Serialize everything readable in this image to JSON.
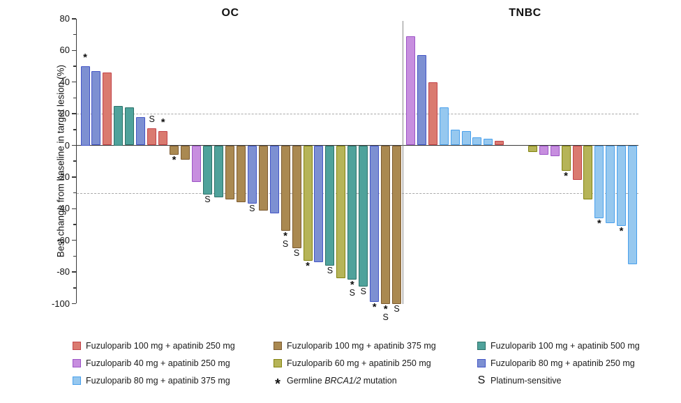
{
  "chart_data": {
    "type": "bar",
    "variant": "waterfall",
    "title": "",
    "ylabel": "Best change from baseline in target lesion (%)",
    "ylim": [
      -100,
      80
    ],
    "yticks": [
      80,
      60,
      40,
      20,
      0,
      -20,
      -40,
      -60,
      -80,
      -100
    ],
    "minor_yticks": [
      70,
      50,
      30,
      10,
      -10,
      -30,
      -50,
      -70,
      -90
    ],
    "reference_lines": [
      20,
      -30
    ],
    "grid": false,
    "marker_meaning": {
      "*": "Germline BRCA1/2 mutation",
      "S": "Platinum-sensitive"
    },
    "groups": {
      "f100a250": {
        "label": "Fuzuloparib 100 mg + apatinib 250 mg",
        "fill": "#DA7A70",
        "border": "#C2444A"
      },
      "f100a375": {
        "label": "Fuzuloparib 100 mg + apatinib 375 mg",
        "fill": "#AA8951",
        "border": "#7C5A30"
      },
      "f100a500": {
        "label": "Fuzuloparib 100 mg + apatinib 500 mg",
        "fill": "#4FA29B",
        "border": "#2B7168"
      },
      "f40a250": {
        "label": "Fuzuloparib 40 mg + apatinib 250 mg",
        "fill": "#C78EDF",
        "border": "#9C54C6"
      },
      "f60a250": {
        "label": "Fuzuloparib 60 mg + apatinib 250 mg",
        "fill": "#B6B458",
        "border": "#83830F"
      },
      "f80a250": {
        "label": "Fuzuloparib 80 mg + apatinib 250 mg",
        "fill": "#7D90D2",
        "border": "#4355C6"
      },
      "f80a375": {
        "label": "Fuzuloparib 80 mg + apatinib 375 mg",
        "fill": "#96C8EF",
        "border": "#49A0EC"
      }
    },
    "panels": [
      {
        "title": "OC",
        "bars": [
          {
            "group": "f80a250",
            "value": 50,
            "marks": "*"
          },
          {
            "group": "f80a250",
            "value": 47,
            "marks": ""
          },
          {
            "group": "f100a250",
            "value": 46,
            "marks": ""
          },
          {
            "group": "f100a500",
            "value": 25,
            "marks": ""
          },
          {
            "group": "f100a500",
            "value": 24,
            "marks": ""
          },
          {
            "group": "f80a250",
            "value": 18,
            "marks": ""
          },
          {
            "group": "f100a250",
            "value": 11,
            "marks": "S"
          },
          {
            "group": "f100a250",
            "value": 9,
            "marks": "*"
          },
          {
            "group": "f100a375",
            "value": -6,
            "marks": "*"
          },
          {
            "group": "f100a375",
            "value": -9,
            "marks": ""
          },
          {
            "group": "f40a250",
            "value": -23,
            "marks": ""
          },
          {
            "group": "f100a500",
            "value": -31,
            "marks": "S"
          },
          {
            "group": "f100a500",
            "value": -33,
            "marks": ""
          },
          {
            "group": "f100a375",
            "value": -34,
            "marks": ""
          },
          {
            "group": "f100a375",
            "value": -36,
            "marks": ""
          },
          {
            "group": "f80a250",
            "value": -37,
            "marks": "S"
          },
          {
            "group": "f100a375",
            "value": -41,
            "marks": ""
          },
          {
            "group": "f80a250",
            "value": -43,
            "marks": ""
          },
          {
            "group": "f100a375",
            "value": -54,
            "marks": "*S"
          },
          {
            "group": "f100a375",
            "value": -65,
            "marks": "S"
          },
          {
            "group": "f60a250",
            "value": -73,
            "marks": "*"
          },
          {
            "group": "f80a250",
            "value": -74,
            "marks": ""
          },
          {
            "group": "f100a500",
            "value": -76,
            "marks": "S"
          },
          {
            "group": "f60a250",
            "value": -84,
            "marks": ""
          },
          {
            "group": "f100a500",
            "value": -85,
            "marks": "*S"
          },
          {
            "group": "f100a500",
            "value": -89,
            "marks": "S"
          },
          {
            "group": "f80a250",
            "value": -99,
            "marks": "*"
          },
          {
            "group": "f100a375",
            "value": -100,
            "marks": "*S"
          },
          {
            "group": "f100a375",
            "value": -100,
            "marks": "S"
          }
        ]
      },
      {
        "title": "TNBC",
        "bars": [
          {
            "group": "f40a250",
            "value": 69,
            "marks": ""
          },
          {
            "group": "f80a250",
            "value": 57,
            "marks": ""
          },
          {
            "group": "f100a250",
            "value": 40,
            "marks": ""
          },
          {
            "group": "f80a375",
            "value": 24,
            "marks": ""
          },
          {
            "group": "f80a375",
            "value": 10,
            "marks": ""
          },
          {
            "group": "f80a375",
            "value": 9,
            "marks": ""
          },
          {
            "group": "f80a375",
            "value": 5,
            "marks": ""
          },
          {
            "group": "f80a375",
            "value": 4,
            "marks": ""
          },
          {
            "group": "f100a250",
            "value": 3,
            "marks": ""
          },
          null,
          null,
          {
            "group": "f60a250",
            "value": -4,
            "marks": ""
          },
          {
            "group": "f40a250",
            "value": -6,
            "marks": ""
          },
          {
            "group": "f40a250",
            "value": -7,
            "marks": ""
          },
          {
            "group": "f60a250",
            "value": -16,
            "marks": "*"
          },
          {
            "group": "f100a250",
            "value": -22,
            "marks": ""
          },
          {
            "group": "f60a250",
            "value": -34,
            "marks": ""
          },
          {
            "group": "f80a375",
            "value": -46,
            "marks": "*"
          },
          {
            "group": "f80a375",
            "value": -49,
            "marks": ""
          },
          {
            "group": "f80a375",
            "value": -51,
            "marks": "*"
          },
          {
            "group": "f80a375",
            "value": -75,
            "marks": ""
          }
        ]
      }
    ]
  },
  "legend": {
    "rows": [
      [
        {
          "swatch": "f100a250"
        },
        {
          "swatch": "f100a375"
        },
        {
          "swatch": "f100a500"
        }
      ],
      [
        {
          "swatch": "f40a250"
        },
        {
          "swatch": "f60a250"
        },
        {
          "swatch": "f80a250"
        }
      ],
      [
        {
          "swatch": "f80a375"
        },
        {
          "symbol": "*",
          "parts": [
            {
              "t": "Germline "
            },
            {
              "t": "BRCA1/2",
              "italic": true
            },
            {
              "t": " mutation"
            }
          ]
        },
        {
          "symbol": "S",
          "parts": [
            {
              "t": "Platinum-sensitive"
            }
          ]
        }
      ]
    ]
  }
}
